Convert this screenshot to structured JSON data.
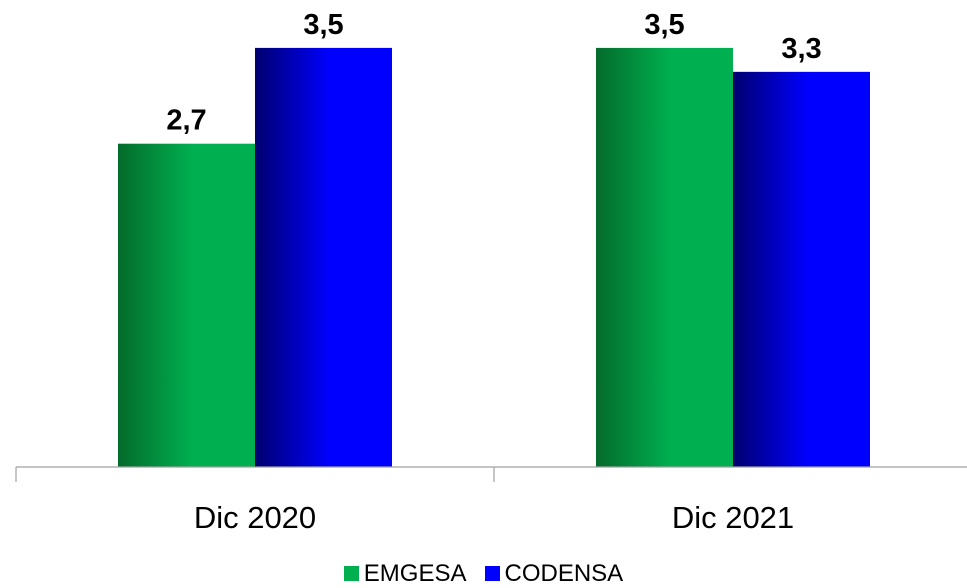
{
  "chart_data": {
    "type": "bar",
    "categories": [
      "Dic 2020",
      "Dic 2021"
    ],
    "series": [
      {
        "name": "EMGESA",
        "values": [
          2.7,
          3.5
        ],
        "labels": [
          "2,7",
          "3,5"
        ],
        "color_dark": "#046b2c",
        "color_light": "#00b050"
      },
      {
        "name": "CODENSA",
        "values": [
          3.5,
          3.3
        ],
        "labels": [
          "3,5",
          "3,3"
        ],
        "color_dark": "#00006e",
        "color_light": "#0000ff"
      }
    ],
    "ylim": [
      0,
      3.9
    ],
    "grid": false,
    "legend": "bottom",
    "title": "",
    "xlabel": "",
    "ylabel": ""
  }
}
